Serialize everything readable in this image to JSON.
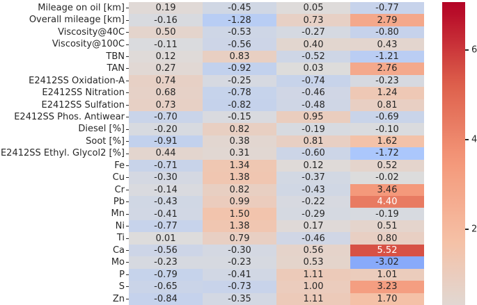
{
  "chart_data": {
    "type": "heatmap",
    "rows": [
      "Mileage on oil [km]",
      "Overall mileage [km]",
      "Viscosity@40C",
      "Viscosity@100C",
      "TBN",
      "TAN",
      "E2412SS Oxidation-A",
      "E2412SS Nitration",
      "E2412SS Sulfation",
      "E2412SS Phos. Antiwear",
      "Diesel [%]",
      "Soot [%]",
      "E2412SS Ethyl. Glycol2 [%]",
      "Fe",
      "Cu",
      "Cr",
      "Pb",
      "Mn",
      "Ni",
      "Ti",
      "Ca",
      "Mo",
      "P",
      "S",
      "Zn"
    ],
    "n_columns": 4,
    "values": [
      [
        0.19,
        -0.45,
        0.05,
        -0.77
      ],
      [
        -0.16,
        -1.28,
        0.73,
        2.79
      ],
      [
        0.5,
        -0.53,
        -0.27,
        -0.8
      ],
      [
        -0.11,
        -0.56,
        0.4,
        0.43
      ],
      [
        0.12,
        0.83,
        -0.52,
        -1.21
      ],
      [
        0.27,
        -0.92,
        0.03,
        2.76
      ],
      [
        0.74,
        -0.25,
        -0.74,
        -0.23
      ],
      [
        0.68,
        -0.78,
        -0.46,
        1.24
      ],
      [
        0.73,
        -0.82,
        -0.48,
        0.81
      ],
      [
        -0.7,
        -0.15,
        0.95,
        -0.69
      ],
      [
        -0.2,
        0.82,
        -0.19,
        -0.1
      ],
      [
        -0.91,
        0.38,
        0.81,
        1.62
      ],
      [
        0.44,
        0.31,
        -0.6,
        -1.72
      ],
      [
        -0.71,
        1.34,
        0.12,
        0.52
      ],
      [
        -0.3,
        1.38,
        -0.37,
        -0.02
      ],
      [
        -0.14,
        0.82,
        -0.43,
        3.46
      ],
      [
        -0.43,
        0.99,
        -0.22,
        4.4
      ],
      [
        -0.41,
        1.5,
        -0.29,
        -0.19
      ],
      [
        -0.77,
        1.38,
        0.17,
        0.51
      ],
      [
        0.01,
        0.79,
        -0.46,
        0.8
      ],
      [
        -0.56,
        -0.3,
        0.56,
        5.52
      ],
      [
        -0.23,
        -0.23,
        0.53,
        -3.02
      ],
      [
        -0.79,
        -0.41,
        1.11,
        1.01
      ],
      [
        -0.65,
        -0.73,
        1.0,
        3.23
      ],
      [
        -0.84,
        -0.35,
        1.11,
        1.7
      ]
    ],
    "annotation_decimals": 2,
    "colormap": "coolwarm",
    "vmin": -7,
    "vmax": 7,
    "grid": false,
    "colorbar": {
      "position": "right",
      "ticks": [
        6,
        4,
        2
      ],
      "visible_range_top": 7.07,
      "visible_range_bottom": 0.31
    }
  },
  "colors": {
    "figure_background": "#ffffff",
    "tick_label": "#262626",
    "annotation_dark": "#262626",
    "annotation_light": "#ffffff",
    "coolwarm_anchors": [
      [
        0.0,
        "#3b4cc0"
      ],
      [
        0.125,
        "#6282ea"
      ],
      [
        0.25,
        "#7b9ff9"
      ],
      [
        0.375,
        "#aac7fd"
      ],
      [
        0.5,
        "#dddcdc"
      ],
      [
        0.625,
        "#f5c0a5"
      ],
      [
        0.75,
        "#f4987a"
      ],
      [
        0.875,
        "#dd5f4b"
      ],
      [
        1.0,
        "#b40426"
      ]
    ]
  }
}
